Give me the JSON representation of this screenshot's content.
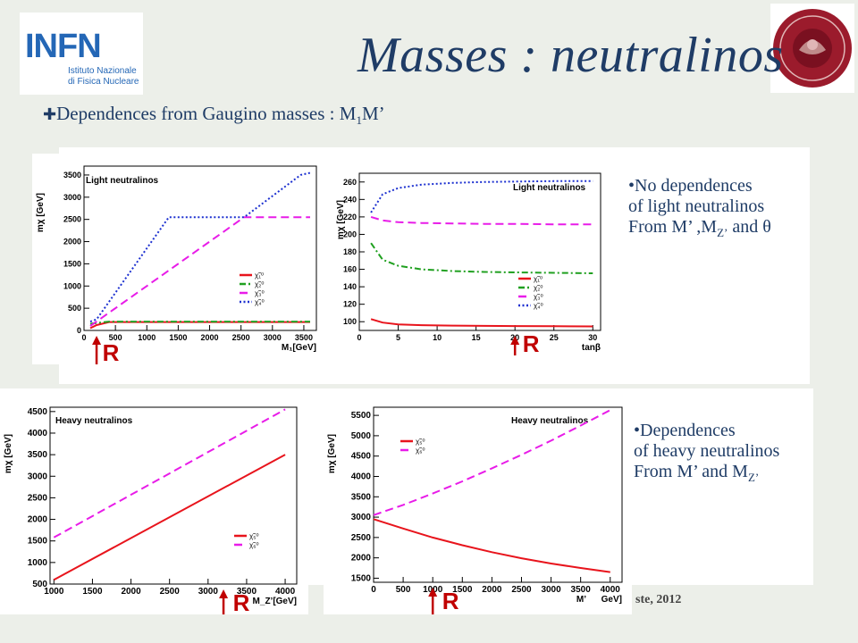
{
  "title": "Masses : neutralinos",
  "bullet": {
    "icon": "plus-bullet-icon",
    "text_before": "Dependences from Gaugino masses : M",
    "sub": "1",
    "text_after": "M’"
  },
  "logos": {
    "infn_main": "INFN",
    "infn_sub1": "Istituto Nazionale",
    "infn_sub2": "di Fisica Nucleare",
    "seal_text": "SAPIENTIA · STVDIVM VRBIS"
  },
  "notes": {
    "top": {
      "line1": "No dependences",
      "line2": "of  light neutralinos",
      "line3_pre": "From M’ ,M",
      "line3_sub": "Z’",
      "line3_post": " and θ"
    },
    "bottom": {
      "line1": "Dependences",
      "line2": "of  heavy neutralinos",
      "line3_pre": "From M’ and M",
      "line3_sub": "Z’"
    }
  },
  "footer": "ste, 2012",
  "marker_label": "R",
  "colors": {
    "red": "#e8141c",
    "green": "#20a020",
    "magenta": "#e81ce8",
    "blue": "#1c30d0",
    "title": "#1f3c66",
    "marker": "#c00000"
  },
  "chart_data": [
    {
      "type": "line",
      "legend_title": "Light neutralinos",
      "xlabel": "M₁[GeV]",
      "ylabel": "mχ [GeV]",
      "xlim": [
        0,
        3700
      ],
      "ylim": [
        0,
        3700
      ],
      "xticks": [
        0,
        500,
        1000,
        1500,
        2000,
        2500,
        3000,
        3500
      ],
      "yticks": [
        0,
        500,
        1000,
        1500,
        2000,
        2500,
        3000,
        3500
      ],
      "marker_x": 200,
      "legend": [
        "χ̃₁⁰",
        "χ̃₂⁰",
        "χ̃₃⁰",
        "χ̃₄⁰"
      ],
      "series": [
        {
          "name": "χ̃₁⁰",
          "color": "red",
          "dash": "solid",
          "x": [
            100,
            200,
            400,
            3600
          ],
          "y": [
            50,
            120,
            190,
            190
          ]
        },
        {
          "name": "χ̃₂⁰",
          "color": "green",
          "dash": "dashdot",
          "x": [
            100,
            400,
            3600
          ],
          "y": [
            150,
            200,
            200
          ]
        },
        {
          "name": "χ̃₃⁰",
          "color": "magenta",
          "dash": "dash",
          "x": [
            100,
            2550,
            3600
          ],
          "y": [
            100,
            2550,
            2550
          ]
        },
        {
          "name": "χ̃₄⁰",
          "color": "blue",
          "dash": "dot",
          "x": [
            100,
            200,
            1350,
            2550,
            3450,
            3600
          ],
          "y": [
            200,
            250,
            2550,
            2550,
            3500,
            3550
          ]
        }
      ]
    },
    {
      "type": "line",
      "legend_title": "Light neutralinos",
      "xlabel": "tanβ",
      "ylabel": "mχ [GeV]",
      "xlim": [
        0,
        31
      ],
      "ylim": [
        90,
        270
      ],
      "xticks": [
        0,
        5,
        10,
        15,
        20,
        25,
        30
      ],
      "yticks": [
        100,
        120,
        140,
        160,
        180,
        200,
        220,
        240,
        260
      ],
      "marker_x": 20,
      "legend": [
        "χ̃₁⁰",
        "χ̃₂⁰",
        "χ̃₃⁰",
        "χ̃₄⁰"
      ],
      "series": [
        {
          "name": "χ̃₁⁰",
          "color": "red",
          "dash": "solid",
          "x": [
            1.5,
            3,
            5,
            8,
            12,
            16,
            20,
            25,
            30
          ],
          "y": [
            103,
            99,
            97,
            96,
            95.5,
            95.2,
            95,
            94.8,
            94.6
          ]
        },
        {
          "name": "χ̃₂⁰",
          "color": "green",
          "dash": "dashdot",
          "x": [
            1.5,
            3,
            5,
            8,
            12,
            16,
            20,
            25,
            30
          ],
          "y": [
            190,
            171,
            164,
            160,
            158,
            157,
            156.5,
            156,
            155.5
          ]
        },
        {
          "name": "χ̃₃⁰",
          "color": "magenta",
          "dash": "dash",
          "x": [
            1.5,
            3,
            5,
            8,
            12,
            16,
            20,
            25,
            30
          ],
          "y": [
            220,
            216,
            214,
            213,
            212.5,
            212,
            212,
            211.5,
            211.5
          ]
        },
        {
          "name": "χ̃₄⁰",
          "color": "blue",
          "dash": "dot",
          "x": [
            1.5,
            3,
            5,
            8,
            12,
            16,
            20,
            25,
            30
          ],
          "y": [
            225,
            246,
            253,
            257,
            259,
            260,
            260.5,
            261,
            261
          ]
        }
      ]
    },
    {
      "type": "line",
      "legend_title": "Heavy neutralinos",
      "xlabel": "M_Z’[GeV]",
      "ylabel": "mχ [GeV]",
      "xlim": [
        950,
        4150
      ],
      "ylim": [
        500,
        4600
      ],
      "xticks": [
        1000,
        1500,
        2000,
        2500,
        3000,
        3500,
        4000
      ],
      "yticks": [
        500,
        1000,
        1500,
        2000,
        2500,
        3000,
        3500,
        4000,
        4500
      ],
      "marker_x": 3200,
      "legend": [
        "χ̃₅⁰",
        "χ̃₆⁰"
      ],
      "series": [
        {
          "name": "χ̃₅⁰",
          "color": "red",
          "dash": "solid",
          "x": [
            1000,
            4000
          ],
          "y": [
            600,
            3500
          ]
        },
        {
          "name": "χ̃₆⁰",
          "color": "magenta",
          "dash": "dash",
          "x": [
            1000,
            4000
          ],
          "y": [
            1580,
            4550
          ]
        }
      ]
    },
    {
      "type": "line",
      "legend_title": "Heavy neutralinos",
      "xlabel": "M’",
      "xlabel_right": "GeV]",
      "ylabel": "mχ [GeV]",
      "xlim": [
        0,
        4200
      ],
      "ylim": [
        1400,
        5700
      ],
      "xticks": [
        0,
        500,
        1000,
        1500,
        2000,
        2500,
        3000,
        3500,
        4000
      ],
      "yticks": [
        1500,
        2000,
        2500,
        3000,
        3500,
        4000,
        4500,
        5000,
        5500
      ],
      "marker_x": 1000,
      "legend": [
        "χ̃₅⁰",
        "χ̃₆⁰"
      ],
      "series": [
        {
          "name": "χ̃₅⁰",
          "color": "red",
          "dash": "solid",
          "x": [
            0,
            500,
            1000,
            1500,
            2000,
            2500,
            3000,
            3500,
            4000
          ],
          "y": [
            2950,
            2720,
            2500,
            2310,
            2140,
            1990,
            1860,
            1750,
            1650
          ]
        },
        {
          "name": "χ̃₆⁰",
          "color": "magenta",
          "dash": "dash",
          "x": [
            0,
            500,
            1000,
            1500,
            2000,
            2500,
            3000,
            3500,
            4000
          ],
          "y": [
            3050,
            3300,
            3580,
            3880,
            4200,
            4530,
            4880,
            5250,
            5630
          ]
        }
      ]
    }
  ]
}
